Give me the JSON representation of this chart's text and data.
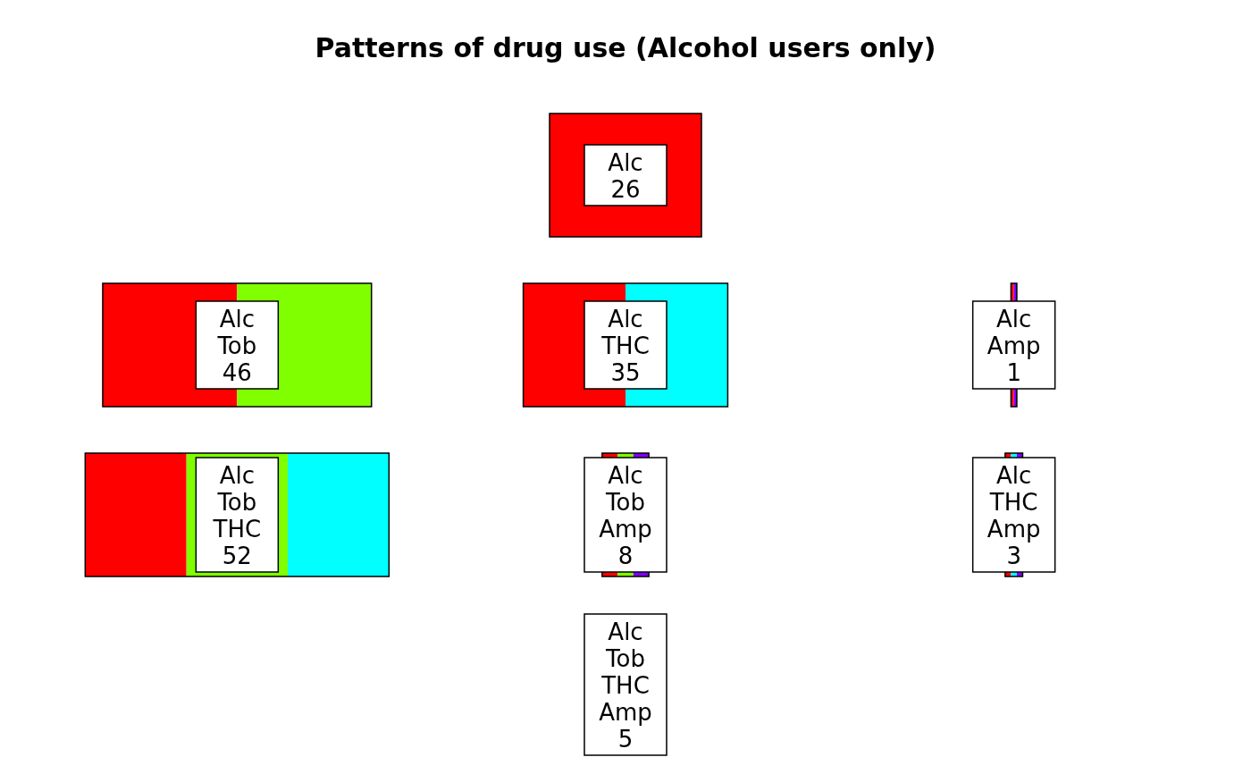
{
  "chart_data": {
    "type": "other",
    "title": "Patterns of drug use (Alcohol users only)",
    "categories": [
      "Alc",
      "Alc Tob",
      "Alc THC",
      "Alc Amp",
      "Alc Tob THC",
      "Alc Tob Amp",
      "Alc THC Amp",
      "Alc Tob THC Amp"
    ],
    "values": [
      26,
      46,
      35,
      1,
      52,
      8,
      3,
      5
    ],
    "data_labels": true
  }
}
